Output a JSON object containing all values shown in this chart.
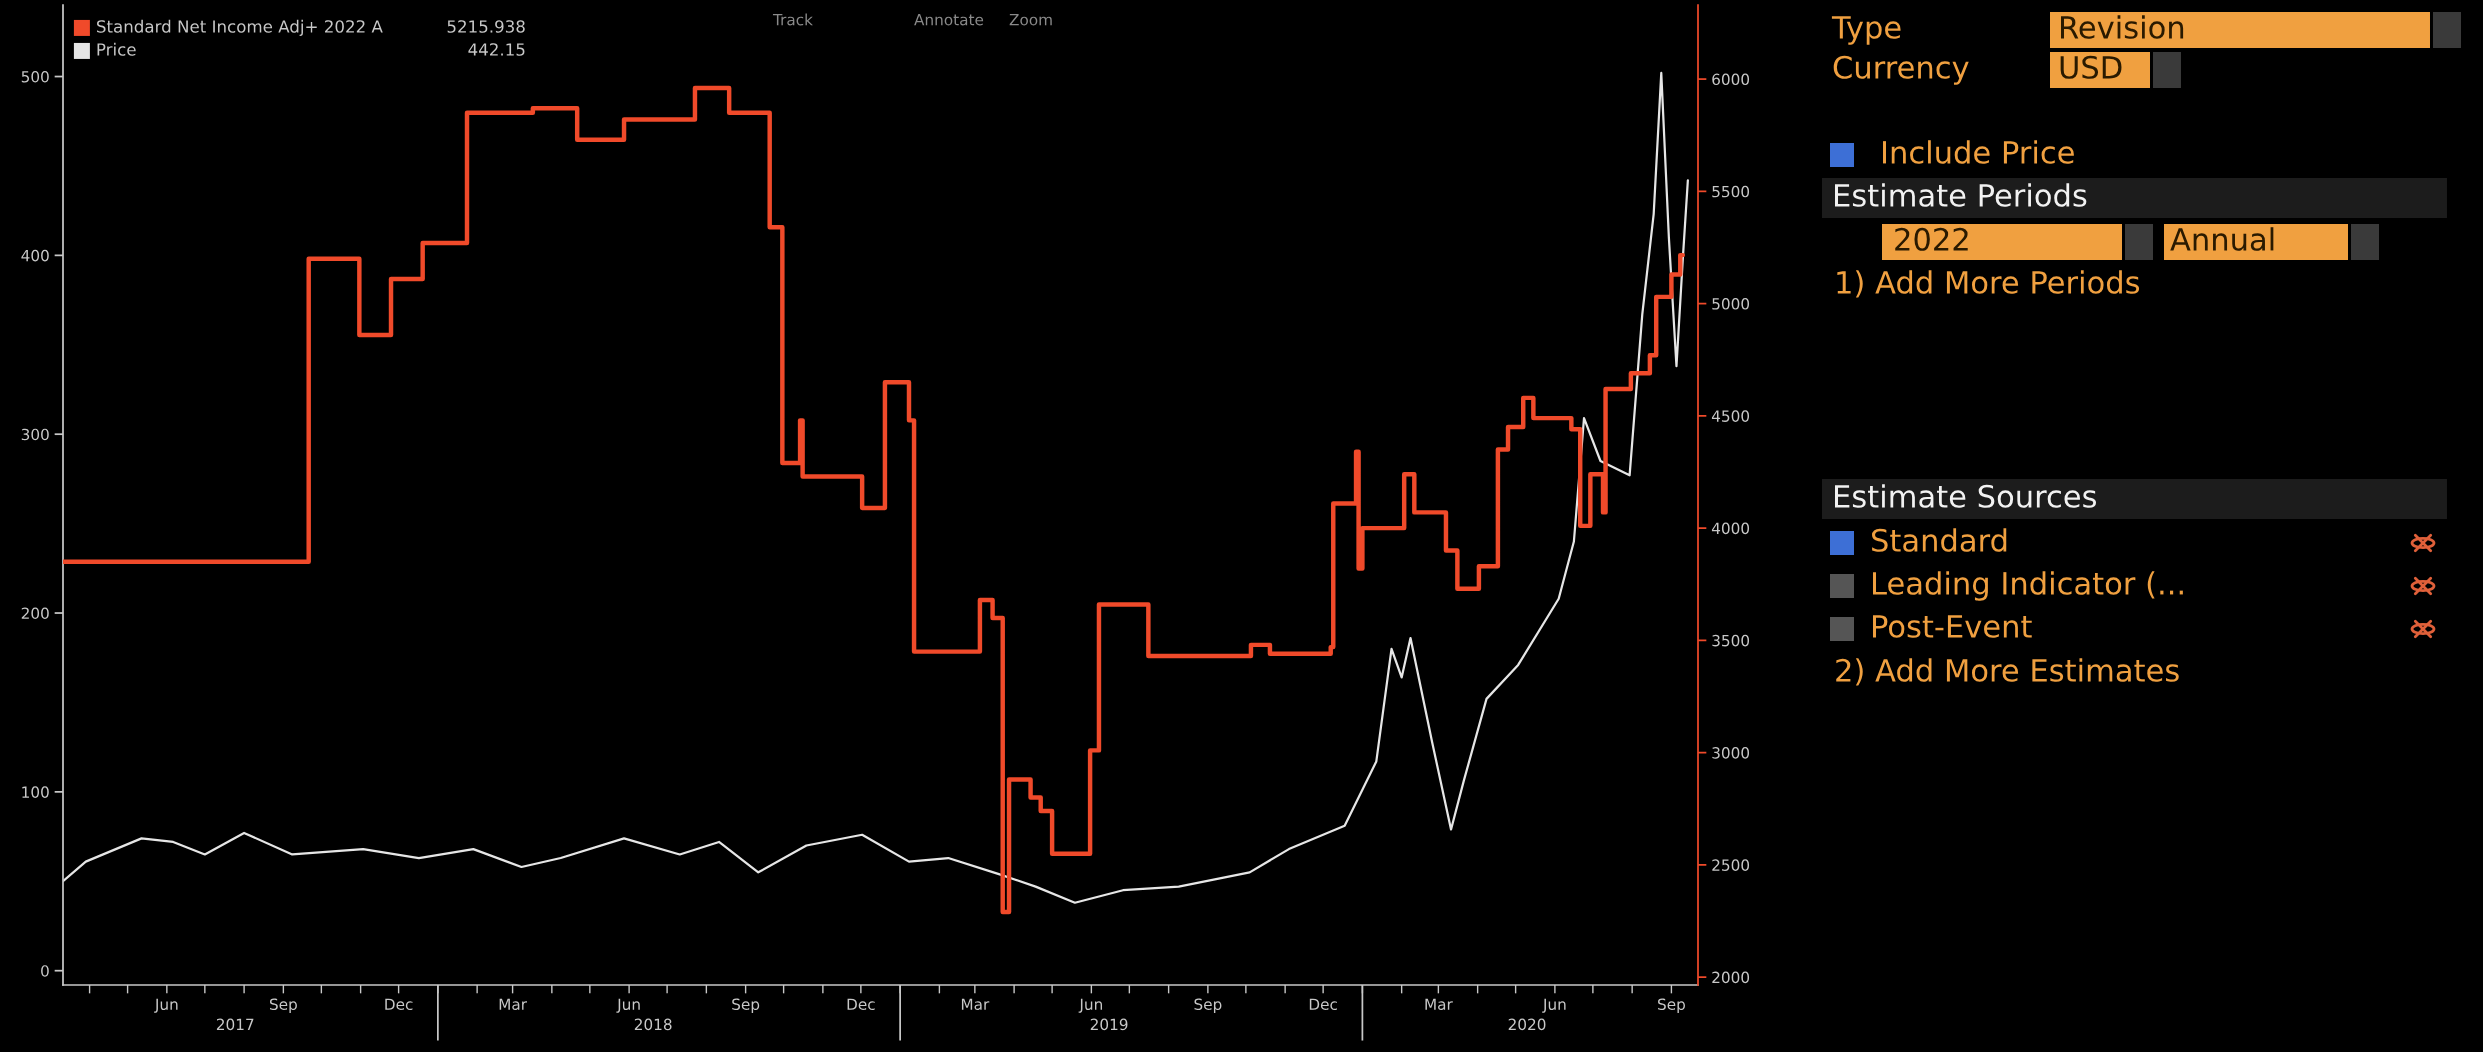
{
  "chart_data": {
    "type": "line",
    "xlim": [
      "2017-03-11",
      "2020-09-22"
    ],
    "xticks": [
      {
        "value": "2017-04-01",
        "label": null
      },
      {
        "value": "2017-05-01",
        "label": null
      },
      {
        "value": "2017-06-01",
        "label": "Jun"
      },
      {
        "value": "2017-07-01",
        "label": null
      },
      {
        "value": "2017-08-01",
        "label": null
      },
      {
        "value": "2017-09-01",
        "label": "Sep"
      },
      {
        "value": "2017-10-01",
        "label": null
      },
      {
        "value": "2017-11-01",
        "label": null
      },
      {
        "value": "2017-12-01",
        "label": "Dec"
      },
      {
        "value": "2018-01-01",
        "label": null
      },
      {
        "value": "2018-02-01",
        "label": null
      },
      {
        "value": "2018-03-01",
        "label": "Mar"
      },
      {
        "value": "2018-04-01",
        "label": null
      },
      {
        "value": "2018-05-01",
        "label": null
      },
      {
        "value": "2018-06-01",
        "label": "Jun"
      },
      {
        "value": "2018-07-01",
        "label": null
      },
      {
        "value": "2018-08-01",
        "label": null
      },
      {
        "value": "2018-09-01",
        "label": "Sep"
      },
      {
        "value": "2018-10-01",
        "label": null
      },
      {
        "value": "2018-11-01",
        "label": null
      },
      {
        "value": "2018-12-01",
        "label": "Dec"
      },
      {
        "value": "2019-01-01",
        "label": null
      },
      {
        "value": "2019-02-01",
        "label": null
      },
      {
        "value": "2019-03-01",
        "label": "Mar"
      },
      {
        "value": "2019-04-01",
        "label": null
      },
      {
        "value": "2019-05-01",
        "label": null
      },
      {
        "value": "2019-06-01",
        "label": "Jun"
      },
      {
        "value": "2019-07-01",
        "label": null
      },
      {
        "value": "2019-08-01",
        "label": null
      },
      {
        "value": "2019-09-01",
        "label": "Sep"
      },
      {
        "value": "2019-10-01",
        "label": null
      },
      {
        "value": "2019-11-01",
        "label": null
      },
      {
        "value": "2019-12-01",
        "label": "Dec"
      },
      {
        "value": "2020-01-01",
        "label": null
      },
      {
        "value": "2020-02-01",
        "label": null
      },
      {
        "value": "2020-03-01",
        "label": "Mar"
      },
      {
        "value": "2020-04-01",
        "label": null
      },
      {
        "value": "2020-05-01",
        "label": null
      },
      {
        "value": "2020-06-01",
        "label": "Jun"
      },
      {
        "value": "2020-07-01",
        "label": null
      },
      {
        "value": "2020-08-01",
        "label": null
      },
      {
        "value": "2020-09-01",
        "label": "Sep"
      }
    ],
    "x2lim": [
      "2017-03-11",
      "2020-09-22"
    ],
    "x2ticks": [
      {
        "value": "2017-07-25",
        "label": "2017"
      },
      {
        "value": "2018-01-01",
        "label": null
      },
      {
        "value": "2018-06-20",
        "label": "2018"
      },
      {
        "value": "2019-01-01",
        "label": null
      },
      {
        "value": "2019-06-15",
        "label": "2019"
      },
      {
        "value": "2020-01-01",
        "label": null
      },
      {
        "value": "2020-05-10",
        "label": "2020"
      }
    ],
    "ylim": [
      -8,
      540
    ],
    "yticks": [
      0,
      100,
      200,
      300,
      400,
      500
    ],
    "y2lim": [
      1965,
      6330
    ],
    "y2ticks": [
      2000,
      2500,
      3000,
      3500,
      4000,
      4500,
      5000,
      5500,
      6000
    ],
    "legend": "top left",
    "series": [
      {
        "name": "Standard Net Income Adj+ 2022 A",
        "type": "step",
        "axis": "y2",
        "color": "#f04a2a",
        "x": [
          "2017-03-11",
          "2017-09-21",
          "2017-10-31",
          "2017-11-25",
          "2017-12-20",
          "2018-01-24",
          "2018-03-17",
          "2018-04-21",
          "2018-05-28",
          "2018-07-23",
          "2018-08-19",
          "2018-09-20",
          "2018-09-30",
          "2018-10-14",
          "2018-10-16",
          "2018-12-02",
          "2018-12-20",
          "2019-01-08",
          "2019-01-12",
          "2019-03-05",
          "2019-03-15",
          "2019-03-23",
          "2019-03-28",
          "2019-04-14",
          "2019-04-22",
          "2019-05-01",
          "2019-05-31",
          "2019-06-07",
          "2019-07-16",
          "2019-10-05",
          "2019-10-20",
          "2019-12-07",
          "2019-12-09",
          "2019-12-27",
          "2019-12-29",
          "2020-01-01",
          "2020-02-03",
          "2020-02-11",
          "2020-03-07",
          "2020-03-16",
          "2020-04-02",
          "2020-04-17",
          "2020-04-25",
          "2020-05-07",
          "2020-05-15",
          "2020-06-14",
          "2020-06-21",
          "2020-06-29",
          "2020-07-09",
          "2020-07-11",
          "2020-07-31",
          "2020-08-15",
          "2020-08-20",
          "2020-09-01",
          "2020-09-08",
          "2020-09-10"
        ],
        "values": [
          3850,
          5200,
          4860,
          5110,
          5270,
          5850,
          5870,
          5730,
          5820,
          5960,
          5850,
          5340,
          4290,
          4480,
          4230,
          4090,
          4650,
          4480,
          3450,
          3680,
          3600,
          2290,
          2880,
          2800,
          2740,
          2550,
          3010,
          3660,
          3430,
          3480,
          3440,
          3470,
          4110,
          4340,
          3820,
          4000,
          4240,
          4070,
          3900,
          3730,
          3830,
          4350,
          4450,
          4580,
          4490,
          4440,
          4010,
          4240,
          4070,
          4620,
          4690,
          4770,
          5030,
          5130,
          5216,
          5216
        ]
      },
      {
        "name": "Price",
        "color": "#e6e6e6",
        "x": [
          "2017-03-11",
          "2017-03-29",
          "2017-05-12",
          "2017-06-06",
          "2017-07-01",
          "2017-08-01",
          "2017-09-08",
          "2017-11-03",
          "2017-12-17",
          "2018-01-29",
          "2018-03-08",
          "2018-04-08",
          "2018-05-28",
          "2018-07-11",
          "2018-08-11",
          "2018-09-11",
          "2018-10-19",
          "2018-12-02",
          "2019-01-08",
          "2019-02-08",
          "2019-03-20",
          "2019-04-18",
          "2019-05-19",
          "2019-06-26",
          "2019-08-09",
          "2019-10-04",
          "2019-11-04",
          "2019-12-18",
          "2020-01-12",
          "2020-01-24",
          "2020-02-01",
          "2020-02-08",
          "2020-02-25",
          "2020-03-11",
          "2020-03-21",
          "2020-04-08",
          "2020-05-03",
          "2020-06-04",
          "2020-06-16",
          "2020-06-24",
          "2020-07-07",
          "2020-07-30",
          "2020-08-09",
          "2020-08-18",
          "2020-08-24",
          "2020-08-30",
          "2020-09-05",
          "2020-09-10",
          "2020-09-14"
        ],
        "values": [
          50,
          61,
          74,
          72,
          65,
          77,
          65,
          68,
          63,
          68,
          58,
          63,
          74,
          65,
          72,
          55,
          70,
          76,
          61,
          63,
          54,
          47,
          38,
          45,
          47,
          55,
          68,
          81,
          117,
          180,
          164,
          186,
          128,
          79,
          106,
          152,
          171,
          208,
          240,
          309,
          285,
          277,
          367,
          423,
          502,
          410,
          338,
          398,
          442
        ]
      }
    ],
    "annotations": [
      "5215.938",
      "442.15",
      "Track",
      "Annotate",
      "Zoom",
      "Type",
      "Revision",
      "Currency",
      "USD",
      "Include Price",
      "Estimate Periods",
      "2022",
      "Annual",
      "1) Add More Periods",
      "Estimate Sources",
      "Standard",
      "Leading Indicator (...",
      "Post-Event",
      "2) Add More Estimates"
    ]
  }
}
